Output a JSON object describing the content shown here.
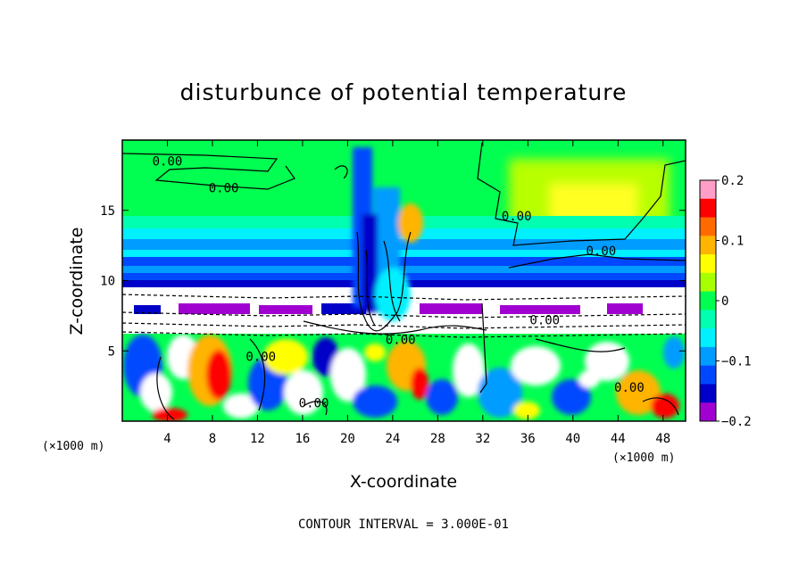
{
  "chart_data": {
    "type": "heatmap",
    "title": "disturbunce of potential temperature",
    "xlabel": "X-coordinate",
    "ylabel": "Z-coordinate",
    "x_unit": "(×1000 m)",
    "y_unit": "(×1000 m)",
    "xlim": [
      0,
      50
    ],
    "ylim": [
      0,
      20
    ],
    "x_ticks": [
      4,
      8,
      12,
      16,
      20,
      24,
      28,
      32,
      36,
      40,
      44,
      48
    ],
    "x_tick_labels": [
      "4",
      "8",
      "12",
      "16",
      "20",
      "24",
      "28",
      "32",
      "36",
      "40",
      "44",
      "48"
    ],
    "y_ticks": [
      5,
      10,
      15
    ],
    "y_tick_labels": [
      "5",
      "10",
      "15"
    ],
    "colorbar": {
      "range": [
        -0.2,
        0.2
      ],
      "tick_values": [
        0.2,
        0.1,
        0,
        -0.1,
        -0.2
      ],
      "tick_labels": [
        "0.2",
        "0.1",
        "0",
        "−0.1",
        "−0.2"
      ],
      "colors": [
        "#ff9fc8",
        "#ff0000",
        "#ff6a00",
        "#ffb400",
        "#ffff00",
        "#a8ff00",
        "#00ff50",
        "#00ffb0",
        "#00f0ff",
        "#009cff",
        "#0048ff",
        "#0000c8",
        "#a000d0"
      ]
    },
    "contour_labels": [
      {
        "text": "0.00",
        "x": 4,
        "y": 18.2
      },
      {
        "text": "0.00",
        "x": 9,
        "y": 16.3
      },
      {
        "text": "0.00",
        "x": 35,
        "y": 14.3
      },
      {
        "text": "0.00",
        "x": 42.5,
        "y": 11.8
      },
      {
        "text": "0.00",
        "x": 37.5,
        "y": 6.9
      },
      {
        "text": "0.00",
        "x": 24.7,
        "y": 5.5
      },
      {
        "text": "0.00",
        "x": 12.3,
        "y": 4.3
      },
      {
        "text": "0.00",
        "x": 17,
        "y": 1.0
      },
      {
        "text": "0.00",
        "x": 45,
        "y": 2.1
      }
    ],
    "contour_interval_text": "CONTOUR INTERVAL = 3.000E-01",
    "grid": false,
    "legend": "right colorbar"
  }
}
